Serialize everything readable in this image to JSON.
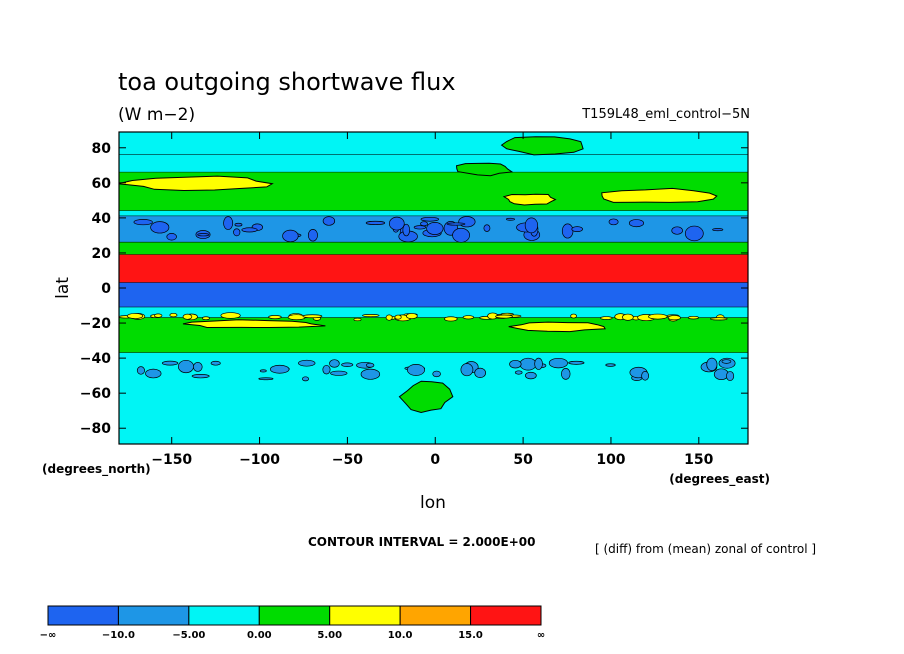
{
  "chart_data": {
    "type": "heatmap",
    "title": "toa outgoing shortwave flux",
    "units": "(W m−2)",
    "experiment": "T159L48_eml_control−5N",
    "xlabel": "lon",
    "ylabel": "lat",
    "x_unit_label": "(degrees_east)",
    "y_unit_label": "(degrees_north)",
    "x_ticks": [
      -150,
      -100,
      -50,
      0,
      50,
      100,
      150
    ],
    "x_tick_labels": [
      "−150",
      "−100",
      "−50",
      "0",
      "50",
      "100",
      "150"
    ],
    "y_ticks": [
      80,
      60,
      40,
      20,
      0,
      -20,
      -40,
      -60,
      -80
    ],
    "y_tick_labels": [
      "80",
      "60",
      "40",
      "20",
      "0",
      "−20",
      "−40",
      "−60",
      "−80"
    ],
    "xlim": [
      -180,
      178
    ],
    "ylim": [
      -89,
      89
    ],
    "contour_interval_text": "CONTOUR INTERVAL = 2.000E+00",
    "note": "[ (diff) from (mean) zonal of control ]",
    "colorbar": {
      "boundaries": [
        "−∞",
        "−10.0",
        "−5.00",
        "0.00",
        "5.00",
        "10.0",
        "15.0",
        "∞"
      ],
      "colors": [
        "#1e64f0",
        "#1e96e6",
        "#00f5f5",
        "#00dc00",
        "#ffff00",
        "#ffa500",
        "#ff1414"
      ]
    },
    "zonal_bands": [
      {
        "lat_min": 76,
        "lat_max": 89,
        "bin": 2
      },
      {
        "lat_min": 66,
        "lat_max": 76,
        "bin": 2
      },
      {
        "lat_min": 44,
        "lat_max": 66,
        "bin": 3
      },
      {
        "lat_min": 41,
        "lat_max": 44,
        "bin": 2
      },
      {
        "lat_min": 26,
        "lat_max": 41,
        "bin": 1
      },
      {
        "lat_min": 19,
        "lat_max": 26,
        "bin": 3
      },
      {
        "lat_min": 3,
        "lat_max": 19,
        "bin": 6
      },
      {
        "lat_min": -11,
        "lat_max": 3,
        "bin": 0
      },
      {
        "lat_min": -17,
        "lat_max": -11,
        "bin": 2
      },
      {
        "lat_min": -37,
        "lat_max": -17,
        "bin": 3
      },
      {
        "lat_min": -89,
        "lat_max": -37,
        "bin": 2
      }
    ],
    "patches": [
      {
        "lon_min": -180,
        "lon_max": -88,
        "lat_min": 55,
        "lat_max": 64,
        "bin": 4,
        "style": "blob"
      },
      {
        "lon_min": 38,
        "lon_max": 70,
        "lat_min": 47,
        "lat_max": 54,
        "bin": 4,
        "style": "blob"
      },
      {
        "lon_min": 88,
        "lon_max": 165,
        "lat_min": 48,
        "lat_max": 57,
        "bin": 4,
        "style": "blob"
      },
      {
        "lon_min": 10,
        "lon_max": 45,
        "lat_min": 64,
        "lat_max": 72,
        "bin": 3,
        "style": "blob"
      },
      {
        "lon_min": 35,
        "lon_max": 90,
        "lat_min": 76,
        "lat_max": 87,
        "bin": 3,
        "style": "blob"
      },
      {
        "lon_min": -180,
        "lon_max": 178,
        "lat_min": 26,
        "lat_max": 41,
        "bin": 0,
        "style": "speckle"
      },
      {
        "lon_min": -180,
        "lon_max": 178,
        "lat_min": -19,
        "lat_max": -14,
        "bin": 4,
        "style": "speckle"
      },
      {
        "lon_min": 40,
        "lon_max": 100,
        "lat_min": -25,
        "lat_max": -19,
        "bin": 4,
        "style": "blob"
      },
      {
        "lon_min": -145,
        "lon_max": -60,
        "lat_min": -23,
        "lat_max": -18,
        "bin": 4,
        "style": "blob"
      },
      {
        "lon_min": -180,
        "lon_max": 178,
        "lat_min": -53,
        "lat_max": -40,
        "bin": 1,
        "style": "speckle"
      },
      {
        "lon_min": -20,
        "lon_max": 10,
        "lat_min": -72,
        "lat_max": -52,
        "bin": 3,
        "style": "blob"
      }
    ]
  }
}
